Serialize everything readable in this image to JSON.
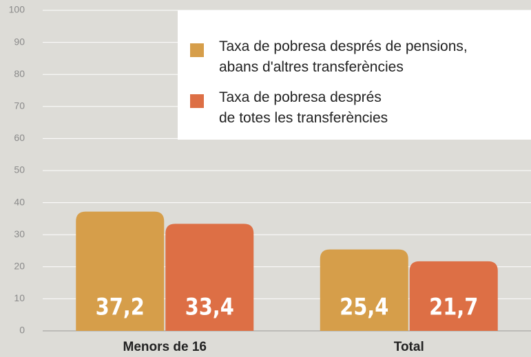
{
  "chart_data": {
    "type": "bar",
    "categories": [
      "Menors de 16",
      "Total"
    ],
    "series": [
      {
        "name": "Taxa de pobresa després de pensions,\nabans d'altres transferències",
        "color": "#d69e4a",
        "values": [
          37.2,
          25.4
        ],
        "value_labels": [
          "37,2",
          "25,4"
        ]
      },
      {
        "name": "Taxa de pobresa després\nde totes les transferències",
        "color": "#dd6f45",
        "values": [
          33.4,
          21.7
        ],
        "value_labels": [
          "33,4",
          "21,7"
        ]
      }
    ],
    "ylim": [
      0,
      100
    ],
    "yticks": [
      0,
      10,
      20,
      30,
      40,
      50,
      60,
      70,
      80,
      90,
      100
    ],
    "grid": true,
    "legend": "top-right"
  }
}
